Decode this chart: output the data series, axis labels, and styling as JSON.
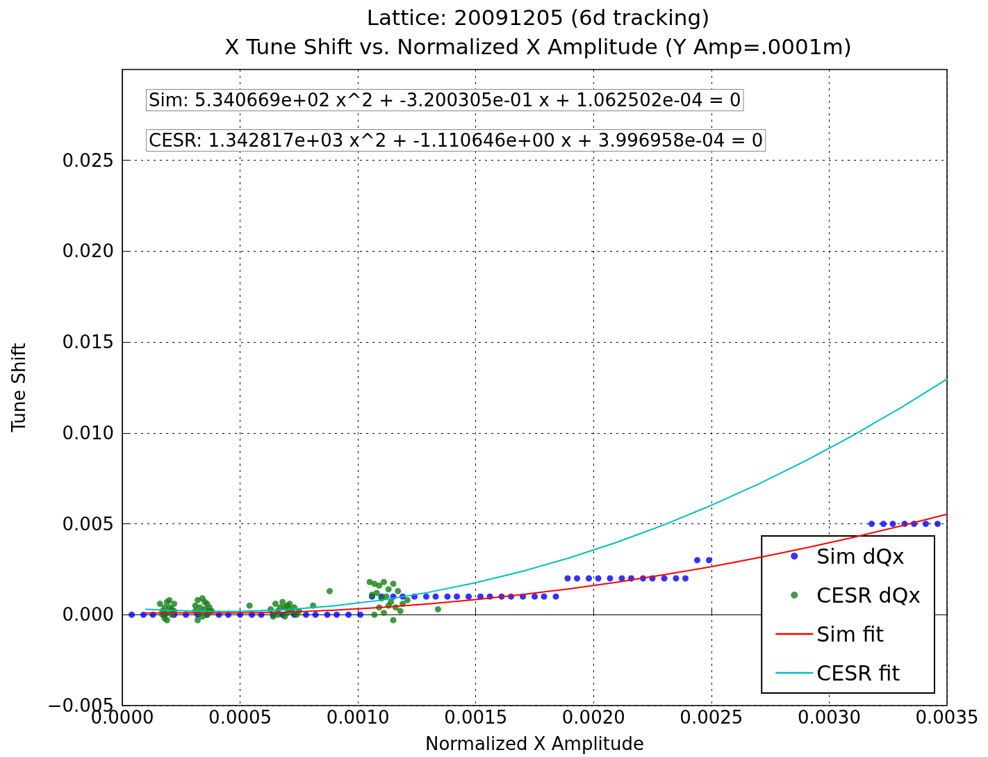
{
  "chart_data": {
    "type": "scatter",
    "title": "Lattice: 20091205 (6d tracking)",
    "subtitle": "X Tune Shift vs. Normalized X Amplitude (Y Amp=.0001m)",
    "xlabel": "Normalized X Amplitude",
    "ylabel": "Tune Shift",
    "annotations": [
      "Sim: 5.340669e+02 x^2 + -3.200305e-01 x + 1.062502e-04 = 0",
      "CESR: 1.342817e+03 x^2 + -1.110646e+00 x + 3.996958e-04 = 0"
    ],
    "xlim": [
      0,
      0.0035
    ],
    "ylim": [
      -0.005,
      0.03
    ],
    "xticks": [
      {
        "value": 0,
        "label": "0.0000"
      },
      {
        "value": 0.0005,
        "label": "0.0005"
      },
      {
        "value": 0.001,
        "label": "0.0010"
      },
      {
        "value": 0.0015,
        "label": "0.0015"
      },
      {
        "value": 0.002,
        "label": "0.0020"
      },
      {
        "value": 0.0025,
        "label": "0.0025"
      },
      {
        "value": 0.003,
        "label": "0.0030"
      },
      {
        "value": 0.0035,
        "label": "0.0035"
      }
    ],
    "yticks": [
      {
        "value": -0.005,
        "label": "−0.005"
      },
      {
        "value": 0,
        "label": "0.000"
      },
      {
        "value": 0.005,
        "label": "0.005"
      },
      {
        "value": 0.01,
        "label": "0.010"
      },
      {
        "value": 0.015,
        "label": "0.015"
      },
      {
        "value": 0.02,
        "label": "0.020"
      },
      {
        "value": 0.025,
        "label": "0.025"
      }
    ],
    "grid": true,
    "legend": "bottom right",
    "series": [
      {
        "name": "Sim dQx",
        "marker": "circle",
        "color": "#0000ff",
        "x": [
          4e-05,
          9e-05,
          0.00013,
          0.00018,
          0.00022,
          0.00027,
          0.00032,
          0.00036,
          0.00041,
          0.00045,
          0.0005,
          0.00055,
          0.00059,
          0.00064,
          0.00068,
          0.00073,
          0.00078,
          0.00082,
          0.00087,
          0.00091,
          0.00096,
          0.00101,
          0.00106,
          0.0011,
          0.00115,
          0.00119,
          0.00124,
          0.00129,
          0.00133,
          0.00138,
          0.00142,
          0.00147,
          0.00152,
          0.00156,
          0.00161,
          0.00165,
          0.0017,
          0.00175,
          0.00179,
          0.00184,
          0.00189,
          0.00193,
          0.00198,
          0.00202,
          0.00207,
          0.00212,
          0.00216,
          0.00221,
          0.00225,
          0.0023,
          0.00235,
          0.00239,
          0.00244,
          0.00249,
          0.00318,
          0.00323,
          0.00327,
          0.00332,
          0.00336,
          0.00341,
          0.00346
        ],
        "values": [
          0,
          0,
          0,
          0,
          0,
          0,
          0,
          0,
          0,
          0,
          0,
          0,
          0,
          0,
          0,
          0,
          0,
          0,
          0,
          0,
          0,
          0,
          0.001,
          0.001,
          0.001,
          0.001,
          0.001,
          0.001,
          0.001,
          0.001,
          0.001,
          0.001,
          0.001,
          0.001,
          0.001,
          0.001,
          0.001,
          0.001,
          0.001,
          0.001,
          0.002,
          0.002,
          0.002,
          0.002,
          0.002,
          0.002,
          0.002,
          0.002,
          0.002,
          0.002,
          0.002,
          0.002,
          0.003,
          0.003,
          0.005,
          0.005,
          0.005,
          0.005,
          0.005,
          0.005,
          0.005
        ]
      },
      {
        "name": "CESR dQx",
        "marker": "circle",
        "color": "#137f13",
        "x": [
          0.00016,
          0.00017,
          0.00018,
          0.00019,
          0.0002,
          0.00021,
          0.00022,
          0.00018,
          0.0002,
          0.00022,
          0.00017,
          0.00019,
          0.00021,
          0.00019,
          0.00031,
          0.00032,
          0.00033,
          0.00034,
          0.00035,
          0.00036,
          0.00037,
          0.00038,
          0.00032,
          0.00034,
          0.00036,
          0.00033,
          0.00035,
          0.00037,
          0.00031,
          0.00063,
          0.00065,
          0.00066,
          0.00068,
          0.00069,
          0.0007,
          0.00071,
          0.00072,
          0.00074,
          0.00075,
          0.00064,
          0.00067,
          0.00069,
          0.00071,
          0.00073,
          0.00066,
          0.0007,
          0.00054,
          0.00081,
          0.00088,
          0.00134,
          0.00105,
          0.00107,
          0.00109,
          0.00111,
          0.00113,
          0.00115,
          0.00117,
          0.00119,
          0.00106,
          0.00108,
          0.0011,
          0.00112,
          0.00114,
          0.00116,
          0.00118,
          0.00107,
          0.00111,
          0.00115,
          0.00109,
          0.00113,
          0.00121
        ],
        "values": [
          0.0006,
          0.0002,
          -0.0002,
          0.0007,
          0.0004,
          0,
          0.0006,
          0.0004,
          0.0008,
          0.0002,
          0,
          -0.0003,
          0.0003,
          0.0001,
          0.0005,
          0.0008,
          0.0001,
          0.0009,
          0.0003,
          0.0006,
          0.0002,
          0.0002,
          -0.0003,
          -0.0001,
          0,
          0.0004,
          0.0007,
          0.0004,
          0.0002,
          0.0003,
          0.0006,
          0,
          0.0007,
          0.0004,
          0.0001,
          0.0006,
          0.0002,
          0,
          0.0002,
          -0.0001,
          0.0004,
          -0.0001,
          0.0003,
          0.0004,
          0.0002,
          0.0005,
          0.0005,
          0.0005,
          0.0013,
          0.0003,
          0.0018,
          0.0017,
          0.0016,
          0.0018,
          0.0014,
          0.0017,
          0.0013,
          0.0006,
          0.0011,
          0.0012,
          0.0009,
          0.001,
          0.0007,
          0.0004,
          0.0002,
          0,
          0.0001,
          -0.0003,
          0.0004,
          0.0005,
          0.0008
        ]
      },
      {
        "name": "Sim fit",
        "type": "line",
        "marker": "none",
        "line_style": "solid",
        "color": "#ff0000",
        "x": [
          0.0001,
          0.0003,
          0.0005,
          0.0007,
          0.0009,
          0.0011,
          0.0013,
          0.0015,
          0.0017,
          0.0019,
          0.0021,
          0.0023,
          0.0025,
          0.0027,
          0.0029,
          0.0031,
          0.0033,
          0.0035
        ],
        "values": [
          0.0001,
          0.0001,
          0.0001,
          0.00014,
          0.00025,
          0.0004,
          0.00059,
          0.00083,
          0.00111,
          0.00143,
          0.00179,
          0.0022,
          0.00264,
          0.00314,
          0.00367,
          0.00425,
          0.00487,
          0.00553
        ]
      },
      {
        "name": "CESR fit",
        "type": "line",
        "marker": "none",
        "line_style": "solid",
        "color": "#00bfbf",
        "x": [
          0.0001,
          0.0003,
          0.0005,
          0.0007,
          0.0009,
          0.0011,
          0.0013,
          0.0015,
          0.0017,
          0.0019,
          0.0021,
          0.0023,
          0.0025,
          0.0027,
          0.0029,
          0.0031,
          0.0033,
          0.0035
        ],
        "values": [
          0.0003,
          0.00019,
          0.00018,
          0.00028,
          0.00049,
          0.0008,
          0.00123,
          0.00176,
          0.00239,
          0.00314,
          0.00399,
          0.00495,
          0.00602,
          0.00719,
          0.00847,
          0.00986,
          0.01136,
          0.01296
        ]
      }
    ]
  }
}
